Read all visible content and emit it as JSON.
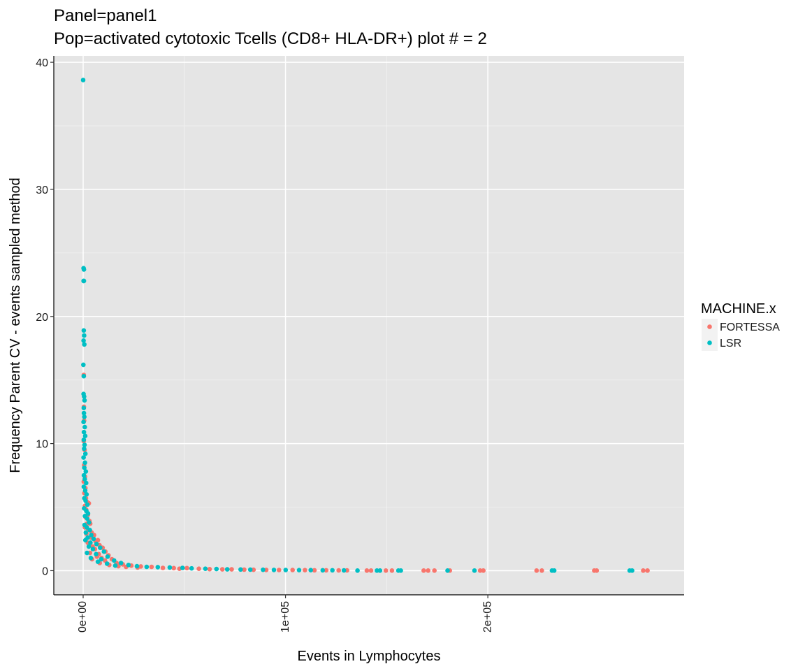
{
  "chart_data": {
    "type": "scatter",
    "title": "Panel=panel1",
    "subtitle": "Pop=activated cytotoxic Tcells (CD8+ HLA-DR+) plot # = 2",
    "xlabel": "Events in Lymphocytes",
    "ylabel": "Frequency Parent CV - events sampled method",
    "xlim": [
      -14500,
      297000
    ],
    "ylim": [
      -1.9,
      40.5
    ],
    "x_ticks": [
      0,
      100000,
      200000
    ],
    "x_tick_labels": [
      "0e+00",
      "1e+05",
      "2e+05"
    ],
    "y_ticks": [
      0,
      10,
      20,
      30,
      40
    ],
    "y_tick_labels": [
      "0",
      "10",
      "20",
      "30",
      "40"
    ],
    "grid": true,
    "legend": {
      "title": "MACHINE.x",
      "placement": "right",
      "entries": [
        "FORTESSA",
        "LSR"
      ]
    },
    "series": [
      {
        "name": "FORTESSA",
        "color": "#F8766D",
        "points": [
          [
            300,
            15.4
          ],
          [
            400,
            12.9
          ],
          [
            500,
            11.8
          ],
          [
            300,
            10.2
          ],
          [
            700,
            9.5
          ],
          [
            500,
            8.3
          ],
          [
            900,
            7.4
          ],
          [
            300,
            7.0
          ],
          [
            1100,
            6.5
          ],
          [
            600,
            6.1
          ],
          [
            1400,
            5.7
          ],
          [
            2000,
            5.4
          ],
          [
            2800,
            5.3
          ],
          [
            900,
            5.1
          ],
          [
            1500,
            4.8
          ],
          [
            2400,
            4.4
          ],
          [
            1200,
            4.2
          ],
          [
            3100,
            3.9
          ],
          [
            1900,
            3.7
          ],
          [
            3500,
            3.7
          ],
          [
            900,
            3.4
          ],
          [
            2600,
            3.2
          ],
          [
            4200,
            3.0
          ],
          [
            1600,
            2.9
          ],
          [
            5400,
            2.8
          ],
          [
            3800,
            2.6
          ],
          [
            7300,
            2.4
          ],
          [
            6200,
            2.3
          ],
          [
            2300,
            2.2
          ],
          [
            8100,
            2.0
          ],
          [
            4700,
            1.9
          ],
          [
            9600,
            1.8
          ],
          [
            5800,
            1.7
          ],
          [
            11000,
            1.5
          ],
          [
            3400,
            1.4
          ],
          [
            7700,
            1.3
          ],
          [
            12500,
            1.2
          ],
          [
            6800,
            1.1
          ],
          [
            9100,
            1.0
          ],
          [
            14200,
            0.9
          ],
          [
            4400,
            0.9
          ],
          [
            10800,
            0.8
          ],
          [
            16500,
            0.6
          ],
          [
            8200,
            0.6
          ],
          [
            19600,
            0.5
          ],
          [
            12900,
            0.45
          ],
          [
            23800,
            0.4
          ],
          [
            17400,
            0.35
          ],
          [
            28500,
            0.33
          ],
          [
            21200,
            0.3
          ],
          [
            33800,
            0.3
          ],
          [
            26900,
            0.25
          ],
          [
            39400,
            0.22
          ],
          [
            44800,
            0.2
          ],
          [
            51300,
            0.2
          ],
          [
            47600,
            0.15
          ],
          [
            57200,
            0.15
          ],
          [
            62500,
            0.12
          ],
          [
            68800,
            0.1
          ],
          [
            73400,
            0.1
          ],
          [
            79600,
            0.08
          ],
          [
            84200,
            0.07
          ],
          [
            90500,
            0.06
          ],
          [
            96800,
            0.05
          ],
          [
            103500,
            0.05
          ],
          [
            109600,
            0.04
          ],
          [
            114300,
            0.03
          ],
          [
            120100,
            0.03
          ],
          [
            126300,
            0.02
          ],
          [
            130400,
            0.02
          ],
          [
            140200,
            0.01
          ],
          [
            142300,
            0.01
          ],
          [
            149600,
            0.01
          ],
          [
            152600,
            0.01
          ],
          [
            168300,
            0.01
          ],
          [
            170500,
            0.01
          ],
          [
            173600,
            0.01
          ],
          [
            181200,
            0.01
          ],
          [
            196200,
            0.01
          ],
          [
            197800,
            0.01
          ],
          [
            224100,
            0.01
          ],
          [
            226700,
            0.01
          ],
          [
            252600,
            0.01
          ],
          [
            253800,
            0.01
          ],
          [
            276800,
            0.01
          ],
          [
            278900,
            0.01
          ]
        ]
      },
      {
        "name": "LSR",
        "color": "#00BFC4",
        "points": [
          [
            0,
            38.6
          ],
          [
            200,
            23.8
          ],
          [
            400,
            23.7
          ],
          [
            200,
            22.8
          ],
          [
            400,
            22.8
          ],
          [
            300,
            18.9
          ],
          [
            500,
            18.5
          ],
          [
            200,
            18.1
          ],
          [
            600,
            17.8
          ],
          [
            100,
            16.2
          ],
          [
            300,
            15.3
          ],
          [
            200,
            13.9
          ],
          [
            500,
            13.7
          ],
          [
            700,
            13.4
          ],
          [
            300,
            12.8
          ],
          [
            400,
            12.4
          ],
          [
            600,
            12.1
          ],
          [
            200,
            11.7
          ],
          [
            800,
            11.3
          ],
          [
            400,
            10.9
          ],
          [
            1000,
            10.6
          ],
          [
            300,
            10.3
          ],
          [
            700,
            9.9
          ],
          [
            500,
            9.6
          ],
          [
            1100,
            9.2
          ],
          [
            200,
            8.9
          ],
          [
            900,
            8.5
          ],
          [
            600,
            8.1
          ],
          [
            1300,
            7.8
          ],
          [
            400,
            7.5
          ],
          [
            800,
            7.2
          ],
          [
            1500,
            6.9
          ],
          [
            300,
            6.6
          ],
          [
            1000,
            6.3
          ],
          [
            1700,
            6.0
          ],
          [
            600,
            5.7
          ],
          [
            1200,
            5.5
          ],
          [
            2100,
            5.2
          ],
          [
            500,
            4.9
          ],
          [
            1600,
            4.7
          ],
          [
            2400,
            4.5
          ],
          [
            900,
            4.3
          ],
          [
            2000,
            4.1
          ],
          [
            2900,
            3.8
          ],
          [
            700,
            3.6
          ],
          [
            1800,
            3.4
          ],
          [
            3300,
            3.2
          ],
          [
            1300,
            3.0
          ],
          [
            4000,
            2.8
          ],
          [
            2200,
            2.6
          ],
          [
            5200,
            2.5
          ],
          [
            1100,
            2.4
          ],
          [
            3600,
            2.2
          ],
          [
            6600,
            2.1
          ],
          [
            2800,
            1.9
          ],
          [
            8400,
            1.8
          ],
          [
            4800,
            1.7
          ],
          [
            10300,
            1.5
          ],
          [
            1900,
            1.4
          ],
          [
            6400,
            1.3
          ],
          [
            12100,
            1.1
          ],
          [
            3800,
            1.0
          ],
          [
            9000,
            0.9
          ],
          [
            15300,
            0.8
          ],
          [
            7300,
            0.7
          ],
          [
            18700,
            0.6
          ],
          [
            11800,
            0.55
          ],
          [
            22400,
            0.45
          ],
          [
            15900,
            0.4
          ],
          [
            26600,
            0.35
          ],
          [
            31400,
            0.3
          ],
          [
            36900,
            0.28
          ],
          [
            42800,
            0.25
          ],
          [
            49100,
            0.22
          ],
          [
            53600,
            0.18
          ],
          [
            60400,
            0.15
          ],
          [
            65900,
            0.13
          ],
          [
            71200,
            0.1
          ],
          [
            77800,
            0.09
          ],
          [
            82600,
            0.08
          ],
          [
            88900,
            0.07
          ],
          [
            94300,
            0.06
          ],
          [
            100100,
            0.05
          ],
          [
            106700,
            0.04
          ],
          [
            112500,
            0.04
          ],
          [
            118400,
            0.03
          ],
          [
            123200,
            0.03
          ],
          [
            128900,
            0.02
          ],
          [
            135600,
            0.01
          ],
          [
            145200,
            0.01
          ],
          [
            146700,
            0.01
          ],
          [
            155800,
            0.01
          ],
          [
            157000,
            0.01
          ],
          [
            180100,
            0.01
          ],
          [
            193400,
            0.01
          ],
          [
            231700,
            0.01
          ],
          [
            232800,
            0.01
          ],
          [
            270100,
            0.01
          ],
          [
            271300,
            0.01
          ]
        ]
      }
    ]
  }
}
